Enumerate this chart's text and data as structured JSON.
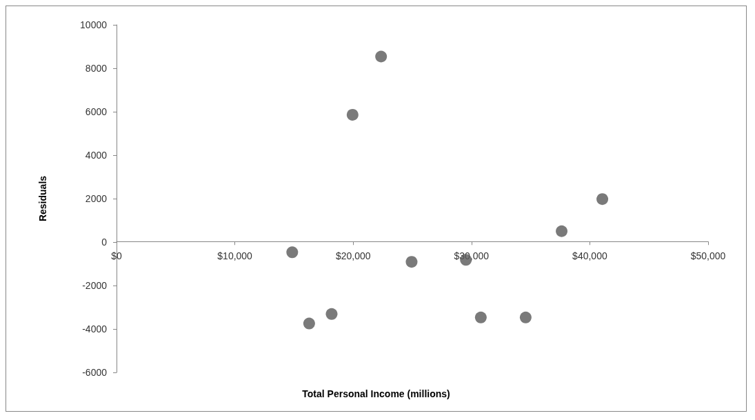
{
  "chart_data": {
    "type": "scatter",
    "xlabel": "Total Personal Income (millions)",
    "ylabel": "Residuals",
    "x": [
      14850,
      16280,
      18180,
      19950,
      22360,
      24940,
      29530,
      30790,
      34580,
      37620,
      41060
    ],
    "values": [
      -470,
      -3750,
      -3310,
      5860,
      8540,
      -910,
      -820,
      -3470,
      -3470,
      500,
      1980
    ],
    "color": "#595959",
    "marker": "circle",
    "xlim": [
      0,
      50000
    ],
    "xticks": [
      {
        "value": 0,
        "label": "$0"
      },
      {
        "value": 10000,
        "label": "$10,000"
      },
      {
        "value": 20000,
        "label": "$20,000"
      },
      {
        "value": 30000,
        "label": "$30,000"
      },
      {
        "value": 40000,
        "label": "$40,000"
      },
      {
        "value": 50000,
        "label": "$50,000"
      }
    ],
    "ylim": [
      -6000,
      10000
    ],
    "yticks": [
      -6000,
      -4000,
      -2000,
      0,
      2000,
      4000,
      6000,
      8000,
      10000
    ]
  }
}
